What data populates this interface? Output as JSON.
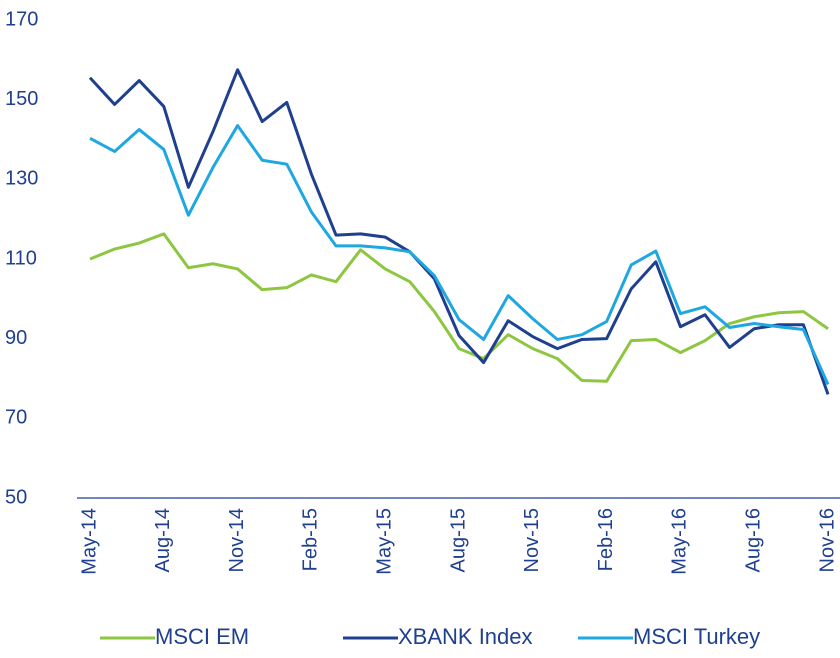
{
  "chart_data": {
    "type": "line",
    "categories": [
      "May-14",
      null,
      null,
      "Aug-14",
      null,
      null,
      "Nov-14",
      null,
      null,
      "Feb-15",
      null,
      null,
      "May-15",
      null,
      null,
      "Aug-15",
      null,
      null,
      "Nov-15",
      null,
      null,
      "Feb-16",
      null,
      null,
      "May-16",
      null,
      null,
      "Aug-16",
      null,
      null,
      "Nov-16"
    ],
    "series": [
      {
        "name": "MSCI EM",
        "color": "#8dc63f",
        "values": [
          110,
          112.5,
          114,
          116.3,
          107.8,
          108.8,
          107.5,
          102.3,
          102.8,
          106,
          104.3,
          112.3,
          107.5,
          104.3,
          96.8,
          87.5,
          85,
          91,
          87.5,
          85,
          79.5,
          79.3,
          89.5,
          89.8,
          86.5,
          89.5,
          93.8,
          95.5,
          96.5,
          96.8,
          92.5
        ]
      },
      {
        "name": "XBANK Index",
        "color": "#1f3f8f",
        "values": [
          155.5,
          148.8,
          154.8,
          148.3,
          128,
          142,
          157.5,
          144.5,
          149.3,
          131.3,
          116,
          116.3,
          115.5,
          111.8,
          105,
          90.8,
          84,
          94.5,
          90.5,
          87.5,
          89.8,
          90,
          102.5,
          109.3,
          93,
          96,
          87.8,
          92.5,
          93.5,
          93.5,
          76
        ]
      },
      {
        "name": "MSCI Turkey",
        "color": "#1ea7e0",
        "values": [
          140.3,
          137,
          142.5,
          137.5,
          121,
          133,
          143.5,
          134.8,
          133.8,
          121.8,
          113.3,
          113.3,
          112.8,
          111.8,
          105.8,
          94.8,
          89.8,
          100.8,
          95,
          89.8,
          91,
          94.3,
          108.5,
          112,
          96.3,
          98,
          92.8,
          93.8,
          93,
          92.3,
          78.5
        ]
      }
    ],
    "ylim": [
      50,
      170
    ],
    "yticks": [
      50,
      70,
      90,
      110,
      130,
      150,
      170
    ],
    "grid": false,
    "legend": "bottom"
  }
}
